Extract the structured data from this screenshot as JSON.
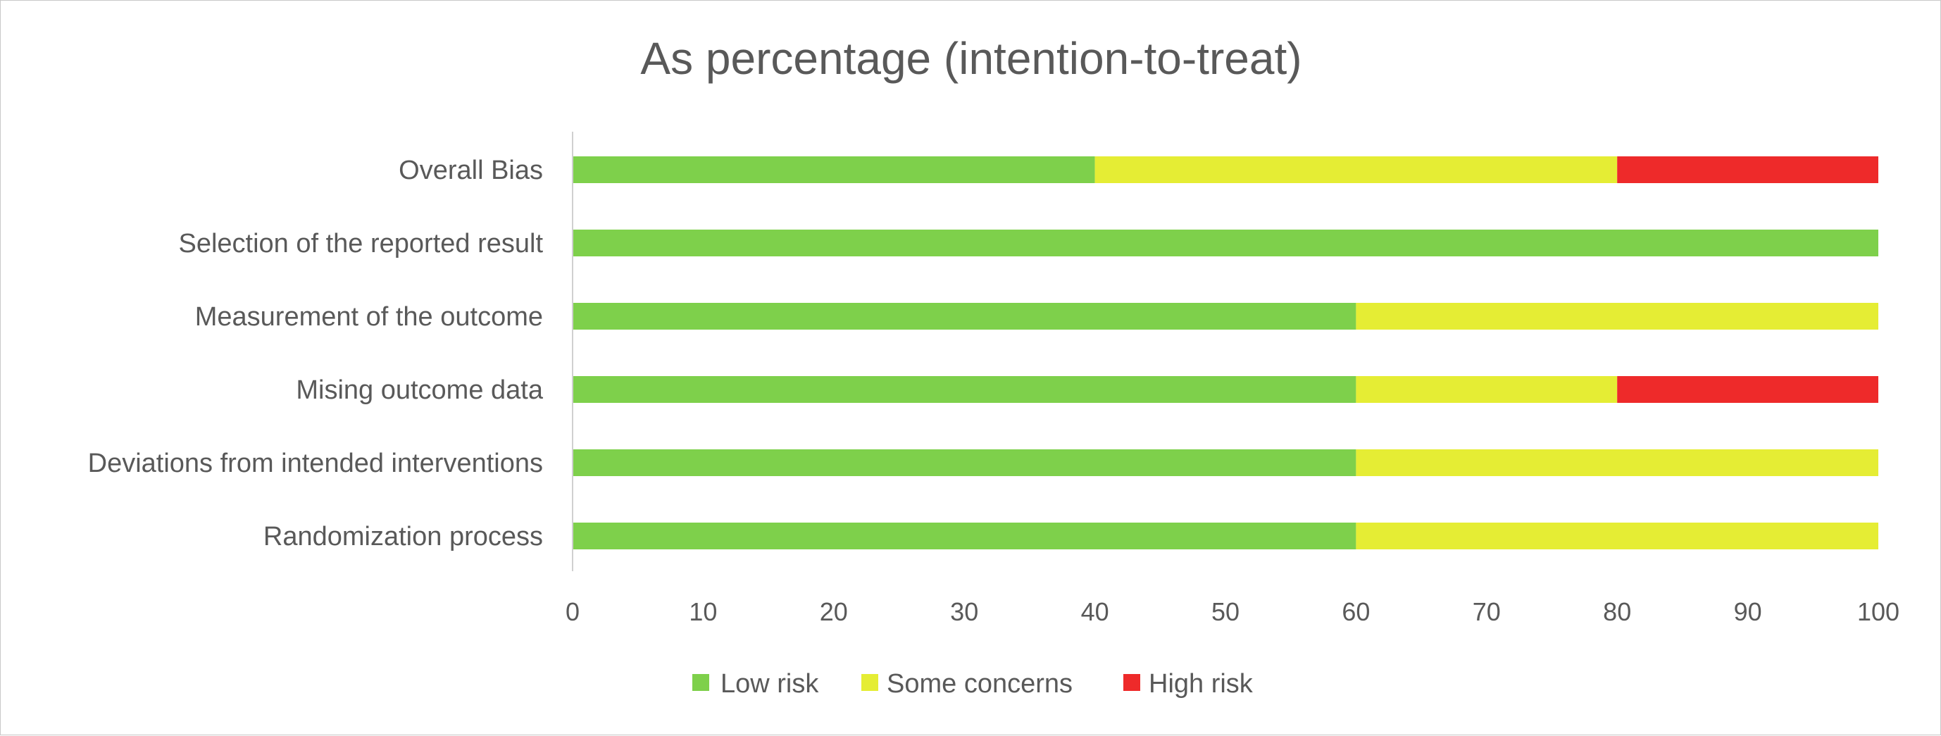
{
  "chart_data": {
    "type": "bar",
    "orientation": "horizontal",
    "stacked": true,
    "title": "As percentage (intention-to-treat)",
    "categories": [
      "Overall Bias",
      "Selection of the reported result",
      "Measurement of the outcome",
      "Mising outcome data",
      "Deviations from intended interventions",
      "Randomization process"
    ],
    "series": [
      {
        "name": "Low risk",
        "color": "#7ed04b",
        "values": [
          40,
          100,
          60,
          60,
          60,
          60
        ]
      },
      {
        "name": "Some concerns",
        "color": "#e5ed34",
        "values": [
          40,
          0,
          40,
          20,
          40,
          40
        ]
      },
      {
        "name": "High risk",
        "color": "#ee2a2a",
        "values": [
          20,
          0,
          0,
          20,
          0,
          0
        ]
      }
    ],
    "xlim": [
      0,
      100
    ],
    "xticks": [
      "0",
      "10",
      "20",
      "30",
      "40",
      "50",
      "60",
      "70",
      "80",
      "90",
      "100"
    ],
    "xlabel": "",
    "ylabel": "",
    "grid": false,
    "legend_position": "bottom"
  }
}
